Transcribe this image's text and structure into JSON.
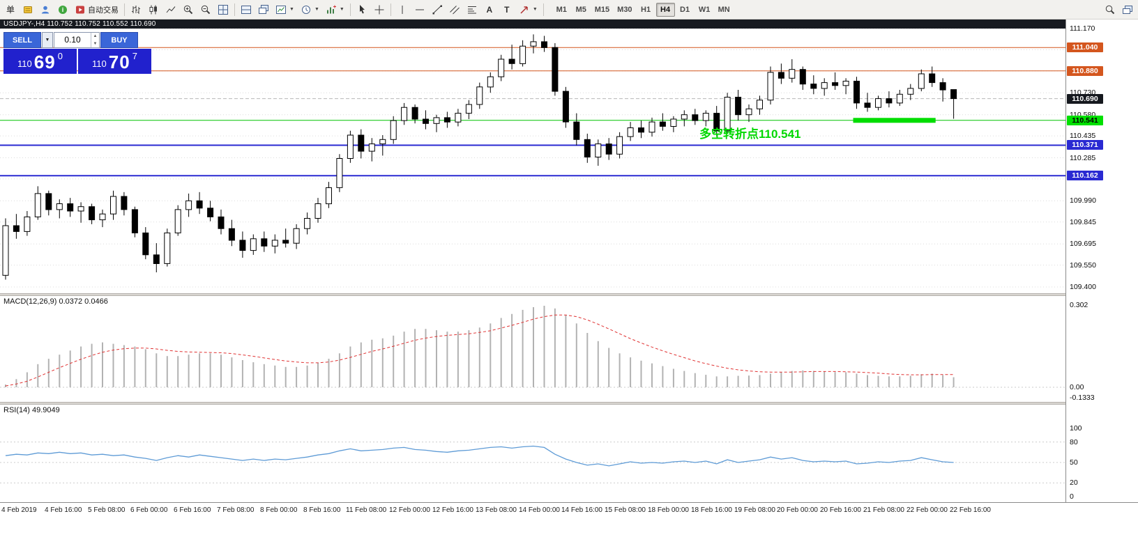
{
  "toolbar": {
    "new_order_label": "单",
    "autotrading_label": "自动交易",
    "text_tool_label": "A",
    "label_tool_label": "T",
    "timeframes": [
      "M1",
      "M5",
      "M15",
      "M30",
      "H1",
      "H4",
      "D1",
      "W1",
      "MN"
    ],
    "active_timeframe": "H4"
  },
  "icons": {
    "caret_down": "▼",
    "spin_up": "▲",
    "spin_down": "▼"
  },
  "chart_window": {
    "title": "USDJPY-,H4  110.752 110.752 110.552 110.690"
  },
  "trade_widget": {
    "sell_label": "SELL",
    "buy_label": "BUY",
    "lot_value": "0.10",
    "sell_price_small": "110",
    "sell_price_big": "69",
    "sell_price_sup": "0",
    "buy_price_small": "110",
    "buy_price_big": "70",
    "buy_price_sup": "7"
  },
  "annotation": {
    "text": "多空转折点110.541",
    "color": "#00d800"
  },
  "indicators": {
    "macd_label": "MACD(12,26,9) 0.0372 0.0466",
    "rsi_label": "RSI(14) 49.9049"
  },
  "price_axis": {
    "grid_prices": [
      111.17,
      111.025,
      110.88,
      110.73,
      110.58,
      110.435,
      110.285,
      110.14,
      109.99,
      109.845,
      109.695,
      109.55,
      109.4
    ],
    "visible_labels": [
      "111.170",
      "110.730",
      "110.580",
      "110.435",
      "110.285",
      "109.990",
      "109.845",
      "109.695",
      "109.550",
      "109.400"
    ],
    "badges": [
      {
        "label": "111.040",
        "price": 111.04,
        "bg": "#d4561e",
        "fg": "#ffffff"
      },
      {
        "label": "110.880",
        "price": 110.88,
        "bg": "#d4561e",
        "fg": "#ffffff"
      },
      {
        "label": "110.690",
        "price": 110.69,
        "bg": "#15181e",
        "fg": "#ffffff"
      },
      {
        "label": "110.541",
        "price": 110.541,
        "bg": "#00e000",
        "fg": "#000000"
      },
      {
        "label": "110.371",
        "price": 110.371,
        "bg": "#2a2ad2",
        "fg": "#ffffff"
      },
      {
        "label": "110.162",
        "price": 110.162,
        "bg": "#2a2ad2",
        "fg": "#ffffff"
      }
    ]
  },
  "macd_axis": [
    "0.302",
    "0.00",
    "-0.1333"
  ],
  "rsi_axis": [
    "100",
    "80",
    "50",
    "20",
    "0"
  ],
  "time_axis": [
    "4 Feb 2019",
    "4 Feb 16:00",
    "5 Feb 08:00",
    "6 Feb 00:00",
    "6 Feb 16:00",
    "7 Feb 08:00",
    "8 Feb 00:00",
    "8 Feb 16:00",
    "11 Feb 08:00",
    "12 Feb 00:00",
    "12 Feb 16:00",
    "13 Feb 08:00",
    "14 Feb 00:00",
    "14 Feb 16:00",
    "15 Feb 08:00",
    "18 Feb 00:00",
    "18 Feb 16:00",
    "19 Feb 08:00",
    "20 Feb 00:00",
    "20 Feb 16:00",
    "21 Feb 08:00",
    "22 Feb 00:00",
    "22 Feb 16:00"
  ],
  "chart_data": [
    {
      "type": "candlestick",
      "symbol": "USDJPY-",
      "timeframe": "H4",
      "ylim": [
        109.4,
        111.17
      ],
      "hlines": [
        {
          "price": 111.04,
          "color": "#d4561e",
          "width": 1
        },
        {
          "price": 110.88,
          "color": "#d4561e",
          "width": 1
        },
        {
          "price": 110.69,
          "color": "#b8b8b8",
          "width": 1,
          "dash": true
        },
        {
          "price": 110.541,
          "color": "#00c400",
          "width": 1
        },
        {
          "price": 110.371,
          "color": "#2a2ad2",
          "width": 2
        },
        {
          "price": 110.162,
          "color": "#2a2ad2",
          "width": 2
        }
      ],
      "highlight": {
        "price": 110.541,
        "from_bar": 79,
        "to_bar": 86,
        "color": "#00dd00"
      },
      "ohlc": [
        [
          109.48,
          109.87,
          109.45,
          109.82
        ],
        [
          109.82,
          109.9,
          109.73,
          109.78
        ],
        [
          109.78,
          109.92,
          109.75,
          109.88
        ],
        [
          109.88,
          110.09,
          109.86,
          110.04
        ],
        [
          110.04,
          110.06,
          109.89,
          109.93
        ],
        [
          109.93,
          110.0,
          109.87,
          109.97
        ],
        [
          109.97,
          110.01,
          109.88,
          109.92
        ],
        [
          109.92,
          109.98,
          109.84,
          109.95
        ],
        [
          109.95,
          109.97,
          109.83,
          109.86
        ],
        [
          109.86,
          109.93,
          109.81,
          109.9
        ],
        [
          109.9,
          110.06,
          109.86,
          110.02
        ],
        [
          110.02,
          110.05,
          109.89,
          109.93
        ],
        [
          109.93,
          109.95,
          109.74,
          109.77
        ],
        [
          109.77,
          109.81,
          109.59,
          109.62
        ],
        [
          109.62,
          109.7,
          109.5,
          109.56
        ],
        [
          109.56,
          109.8,
          109.54,
          109.77
        ],
        [
          109.77,
          109.96,
          109.75,
          109.93
        ],
        [
          109.93,
          110.04,
          109.88,
          109.99
        ],
        [
          109.99,
          110.05,
          109.9,
          109.94
        ],
        [
          109.94,
          109.99,
          109.85,
          109.88
        ],
        [
          109.88,
          109.93,
          109.76,
          109.8
        ],
        [
          109.8,
          109.86,
          109.68,
          109.72
        ],
        [
          109.72,
          109.78,
          109.6,
          109.65
        ],
        [
          109.65,
          109.76,
          109.62,
          109.73
        ],
        [
          109.73,
          109.78,
          109.64,
          109.68
        ],
        [
          109.68,
          109.76,
          109.63,
          109.72
        ],
        [
          109.72,
          109.8,
          109.67,
          109.7
        ],
        [
          109.7,
          109.83,
          109.66,
          109.8
        ],
        [
          109.8,
          109.91,
          109.76,
          109.87
        ],
        [
          109.87,
          110.01,
          109.84,
          109.97
        ],
        [
          109.97,
          110.12,
          109.94,
          110.08
        ],
        [
          110.08,
          110.31,
          110.05,
          110.28
        ],
        [
          110.28,
          110.47,
          110.25,
          110.44
        ],
        [
          110.44,
          110.48,
          110.28,
          110.33
        ],
        [
          110.33,
          110.42,
          110.26,
          110.38
        ],
        [
          110.38,
          110.44,
          110.3,
          110.41
        ],
        [
          110.41,
          110.57,
          110.38,
          110.54
        ],
        [
          110.54,
          110.66,
          110.51,
          110.63
        ],
        [
          110.63,
          110.65,
          110.52,
          110.55
        ],
        [
          110.55,
          110.61,
          110.48,
          110.52
        ],
        [
          110.52,
          110.58,
          110.46,
          110.56
        ],
        [
          110.56,
          110.6,
          110.49,
          110.53
        ],
        [
          110.53,
          110.62,
          110.5,
          110.59
        ],
        [
          110.59,
          110.68,
          110.55,
          110.65
        ],
        [
          110.65,
          110.8,
          110.62,
          110.77
        ],
        [
          110.77,
          110.87,
          110.73,
          110.84
        ],
        [
          110.84,
          110.99,
          110.81,
          110.96
        ],
        [
          110.96,
          111.06,
          110.89,
          110.93
        ],
        [
          110.93,
          111.09,
          110.91,
          111.05
        ],
        [
          111.05,
          111.13,
          111.0,
          111.08
        ],
        [
          111.08,
          111.12,
          111.01,
          111.04
        ],
        [
          111.04,
          111.07,
          110.71,
          110.74
        ],
        [
          110.74,
          110.77,
          110.49,
          110.53
        ],
        [
          110.53,
          110.59,
          110.37,
          110.41
        ],
        [
          110.41,
          110.45,
          110.25,
          110.29
        ],
        [
          110.29,
          110.41,
          110.23,
          110.38
        ],
        [
          110.38,
          110.42,
          110.27,
          110.31
        ],
        [
          110.31,
          110.46,
          110.28,
          110.43
        ],
        [
          110.43,
          110.53,
          110.4,
          110.49
        ],
        [
          110.49,
          110.54,
          110.42,
          110.46
        ],
        [
          110.46,
          110.56,
          110.43,
          110.53
        ],
        [
          110.53,
          110.59,
          110.47,
          110.5
        ],
        [
          110.5,
          110.57,
          110.46,
          110.55
        ],
        [
          110.55,
          110.61,
          110.5,
          110.58
        ],
        [
          110.58,
          110.62,
          110.51,
          110.54
        ],
        [
          110.54,
          110.61,
          110.5,
          110.59
        ],
        [
          110.59,
          110.64,
          110.43,
          110.47
        ],
        [
          110.47,
          110.73,
          110.45,
          110.7
        ],
        [
          110.7,
          110.75,
          110.54,
          110.58
        ],
        [
          110.58,
          110.65,
          110.53,
          110.62
        ],
        [
          110.62,
          110.71,
          110.58,
          110.68
        ],
        [
          110.68,
          110.91,
          110.65,
          110.87
        ],
        [
          110.87,
          110.93,
          110.79,
          110.83
        ],
        [
          110.83,
          110.96,
          110.8,
          110.89
        ],
        [
          110.89,
          110.91,
          110.75,
          110.79
        ],
        [
          110.79,
          110.85,
          110.72,
          110.76
        ],
        [
          110.76,
          110.83,
          110.71,
          110.8
        ],
        [
          110.8,
          110.87,
          110.75,
          110.78
        ],
        [
          110.78,
          110.83,
          110.72,
          110.81
        ],
        [
          110.81,
          110.84,
          110.62,
          110.66
        ],
        [
          110.66,
          110.73,
          110.6,
          110.63
        ],
        [
          110.63,
          110.71,
          110.61,
          110.69
        ],
        [
          110.69,
          110.74,
          110.63,
          110.66
        ],
        [
          110.66,
          110.75,
          110.64,
          110.72
        ],
        [
          110.72,
          110.79,
          110.68,
          110.76
        ],
        [
          110.76,
          110.89,
          110.74,
          110.86
        ],
        [
          110.86,
          110.91,
          110.77,
          110.8
        ],
        [
          110.8,
          110.83,
          110.67,
          110.75
        ],
        [
          110.752,
          110.752,
          110.552,
          110.69
        ]
      ]
    },
    {
      "type": "bar",
      "title": "MACD(12,26,9)",
      "ylim": [
        -0.1333,
        0.302
      ],
      "values": [
        0.01,
        0.03,
        0.055,
        0.085,
        0.105,
        0.12,
        0.135,
        0.15,
        0.16,
        0.165,
        0.16,
        0.155,
        0.15,
        0.14,
        0.125,
        0.115,
        0.115,
        0.12,
        0.125,
        0.125,
        0.12,
        0.11,
        0.1,
        0.092,
        0.085,
        0.08,
        0.075,
        0.075,
        0.08,
        0.09,
        0.105,
        0.125,
        0.15,
        0.165,
        0.175,
        0.18,
        0.19,
        0.205,
        0.215,
        0.215,
        0.21,
        0.205,
        0.205,
        0.21,
        0.22,
        0.235,
        0.255,
        0.27,
        0.285,
        0.295,
        0.3,
        0.29,
        0.265,
        0.235,
        0.2,
        0.17,
        0.145,
        0.125,
        0.11,
        0.098,
        0.088,
        0.078,
        0.068,
        0.06,
        0.052,
        0.046,
        0.04,
        0.04,
        0.042,
        0.043,
        0.045,
        0.05,
        0.055,
        0.06,
        0.062,
        0.06,
        0.058,
        0.056,
        0.055,
        0.05,
        0.045,
        0.042,
        0.04,
        0.04,
        0.042,
        0.048,
        0.05,
        0.045,
        0.037
      ],
      "signal": [
        0.005,
        0.012,
        0.022,
        0.038,
        0.055,
        0.072,
        0.088,
        0.103,
        0.117,
        0.129,
        0.137,
        0.142,
        0.144,
        0.144,
        0.141,
        0.136,
        0.132,
        0.13,
        0.129,
        0.128,
        0.127,
        0.124,
        0.119,
        0.114,
        0.108,
        0.102,
        0.097,
        0.093,
        0.09,
        0.09,
        0.093,
        0.1,
        0.11,
        0.121,
        0.132,
        0.141,
        0.151,
        0.162,
        0.173,
        0.181,
        0.187,
        0.191,
        0.194,
        0.197,
        0.202,
        0.208,
        0.218,
        0.228,
        0.239,
        0.251,
        0.26,
        0.266,
        0.266,
        0.26,
        0.248,
        0.232,
        0.215,
        0.197,
        0.179,
        0.163,
        0.148,
        0.134,
        0.121,
        0.109,
        0.097,
        0.087,
        0.078,
        0.07,
        0.064,
        0.06,
        0.057,
        0.056,
        0.056,
        0.056,
        0.057,
        0.058,
        0.058,
        0.058,
        0.057,
        0.056,
        0.054,
        0.052,
        0.049,
        0.047,
        0.046,
        0.046,
        0.047,
        0.047,
        0.047
      ]
    },
    {
      "type": "line",
      "title": "RSI(14)",
      "ylim": [
        0,
        100
      ],
      "levels": [
        80,
        50,
        20
      ],
      "values": [
        60,
        62,
        61,
        64,
        63,
        65,
        63,
        64,
        61,
        62,
        60,
        61,
        58,
        56,
        53,
        57,
        60,
        58,
        61,
        59,
        57,
        55,
        53,
        55,
        53,
        55,
        54,
        56,
        58,
        61,
        63,
        67,
        70,
        67,
        68,
        69,
        71,
        72,
        69,
        68,
        66,
        65,
        67,
        68,
        70,
        72,
        73,
        71,
        73,
        74,
        72,
        62,
        55,
        50,
        46,
        48,
        45,
        48,
        51,
        49,
        50,
        49,
        51,
        52,
        50,
        52,
        48,
        54,
        50,
        52,
        54,
        58,
        55,
        57,
        53,
        51,
        52,
        51,
        52,
        48,
        49,
        51,
        50,
        52,
        53,
        57,
        54,
        51,
        50
      ]
    }
  ]
}
